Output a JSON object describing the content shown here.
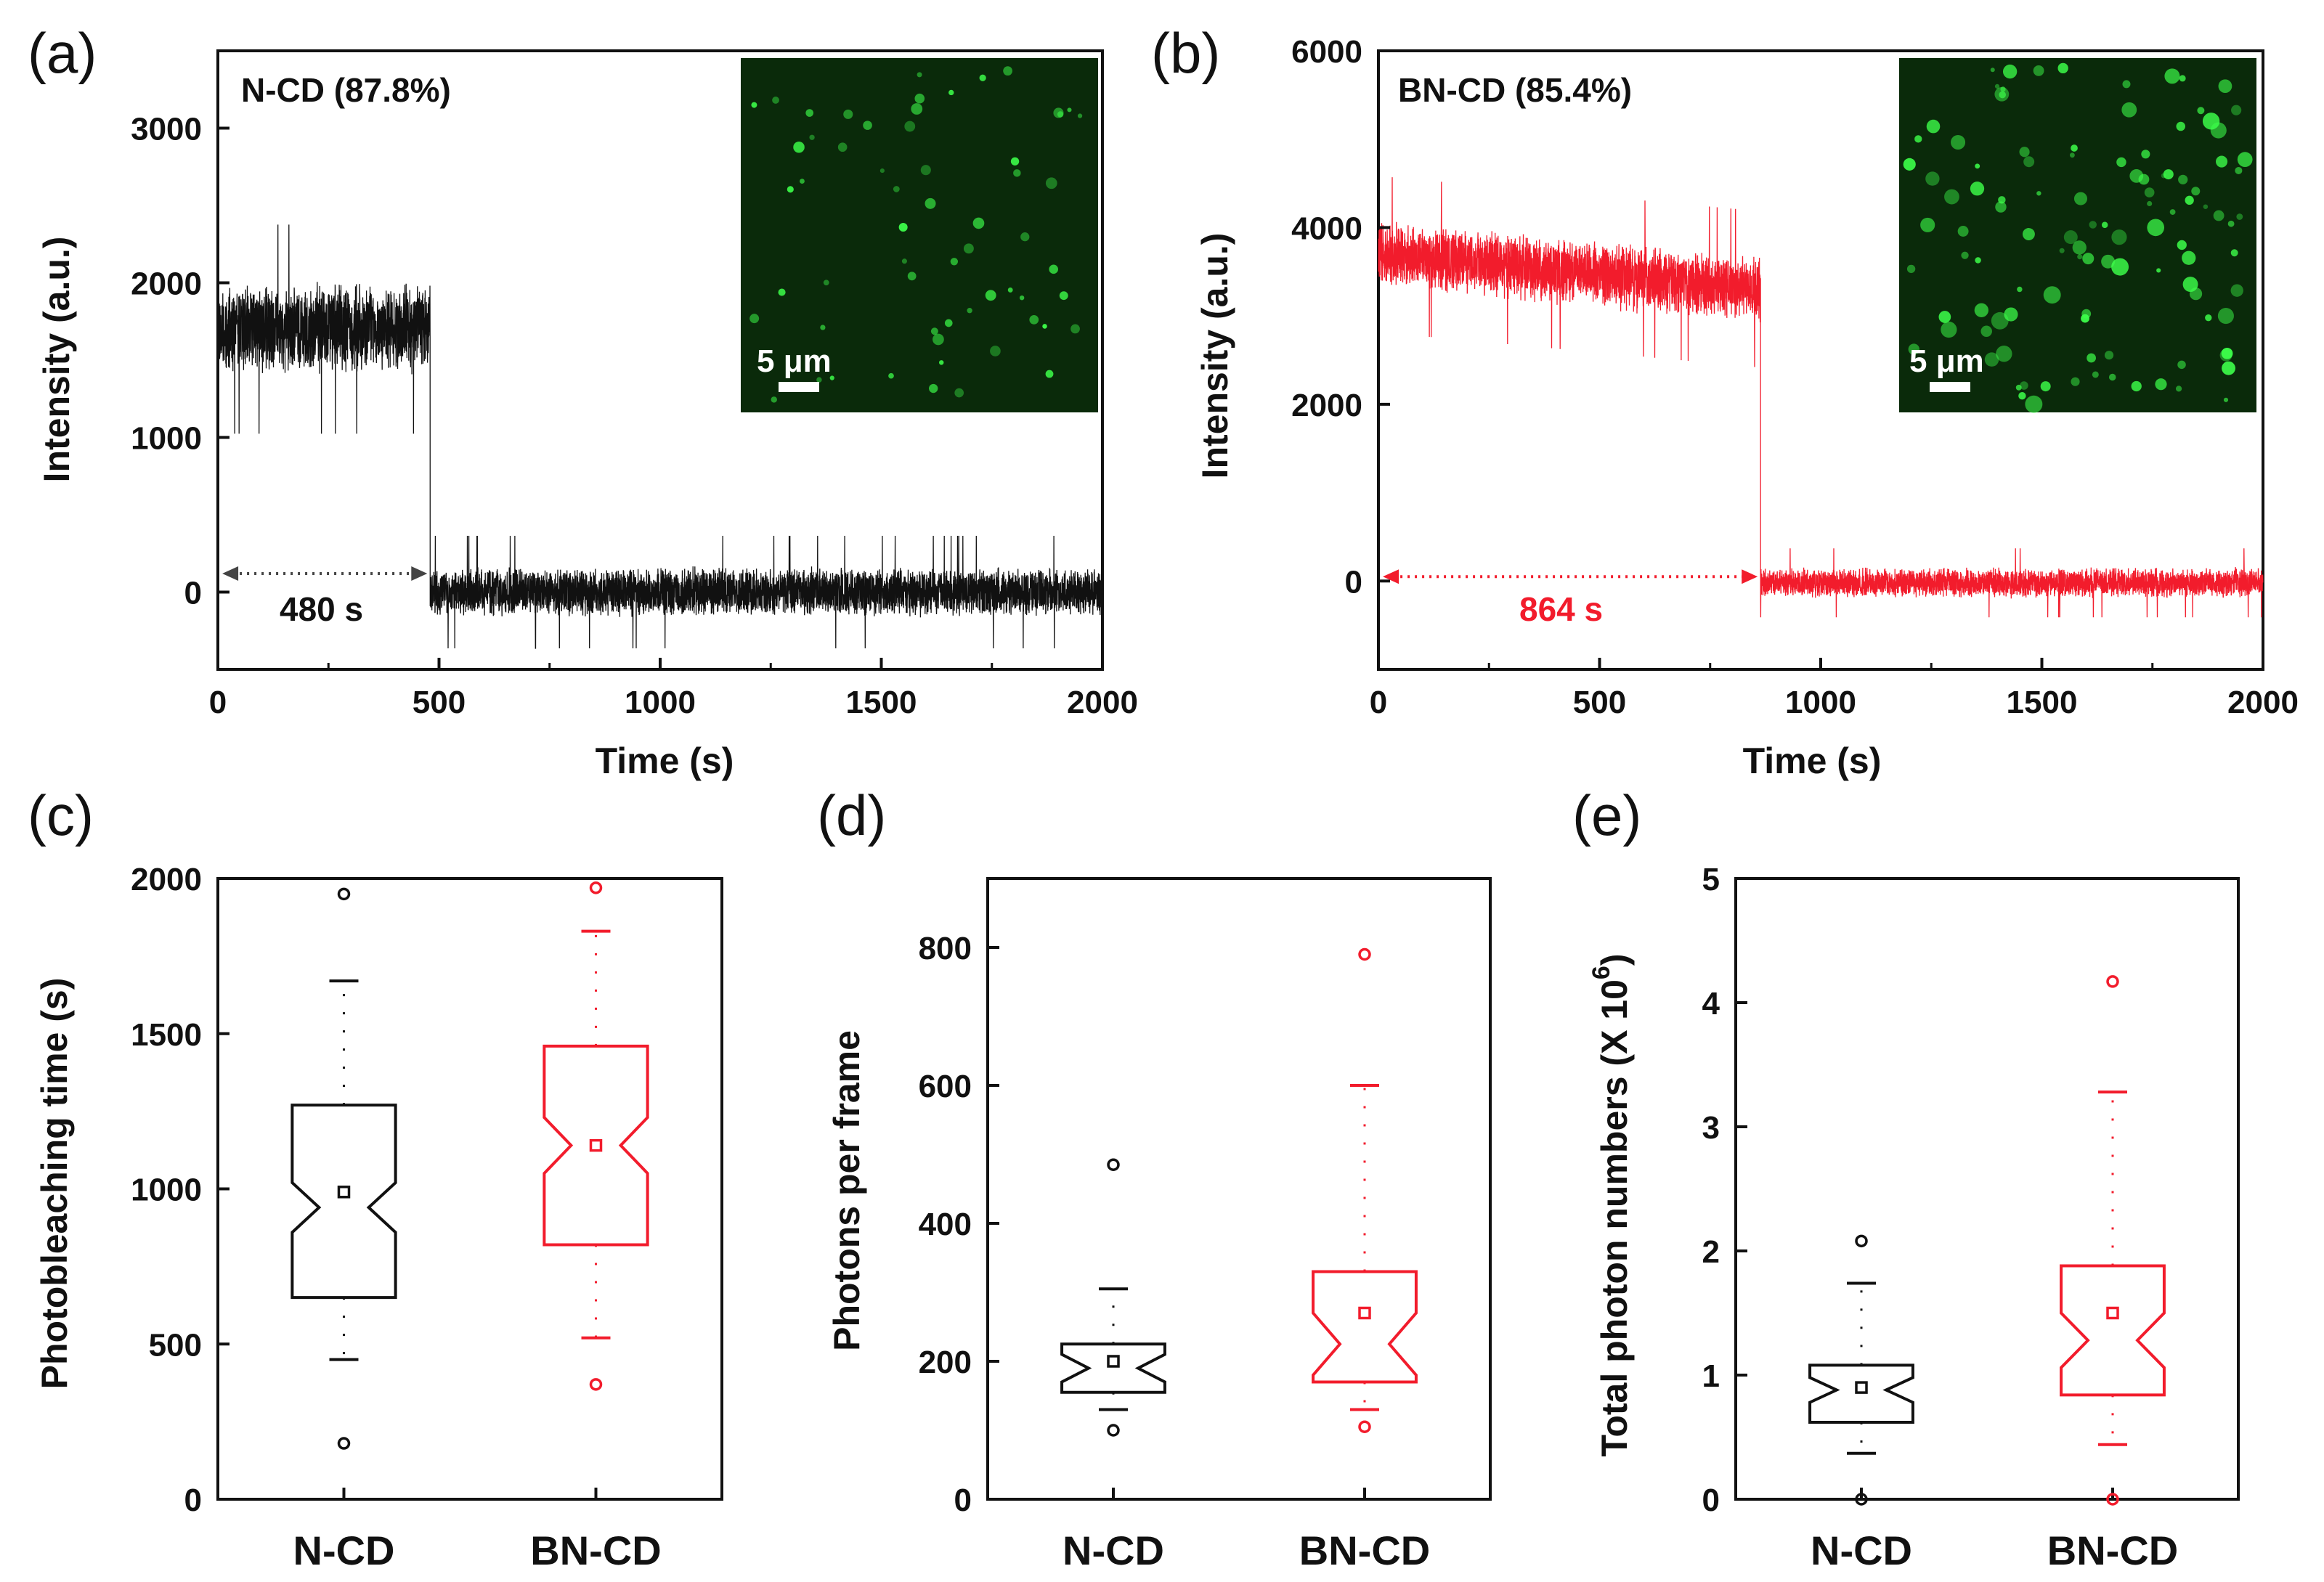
{
  "colors": {
    "black": "#111111",
    "red": "#f21c2c",
    "inset_bg": "#0a2a0a",
    "dot": "#3dff4a"
  },
  "chart_data": [
    {
      "panel": "(a)",
      "type": "line",
      "title": "N-CD (87.8%)",
      "xlabel": "Time (s)",
      "ylabel": "Intensity (a.u.)",
      "xlim": [
        0,
        2000
      ],
      "ylim": [
        -500,
        3500
      ],
      "xticks": [
        0,
        500,
        1000,
        1500,
        2000
      ],
      "yticks": [
        0,
        1000,
        2000,
        3000
      ],
      "color": "black",
      "segments": [
        {
          "x_start": 0,
          "x_end": 480,
          "mean": 1700,
          "noise": 260
        },
        {
          "x_start": 480,
          "x_end": 2000,
          "mean": 0,
          "noise": 140
        }
      ],
      "bleach_time": 480,
      "duration_label": "480 s",
      "inset": {
        "scale_label": "5 μm",
        "dots": 60
      }
    },
    {
      "panel": "(b)",
      "type": "line",
      "title": "BN-CD (85.4%)",
      "xlabel": "Time (s)",
      "ylabel": "Intensity (a.u.)",
      "xlim": [
        0,
        2000
      ],
      "ylim": [
        -1000,
        6000
      ],
      "xticks": [
        0,
        500,
        1000,
        1500,
        2000
      ],
      "yticks": [
        0,
        2000,
        4000,
        6000
      ],
      "color": "red",
      "segments": [
        {
          "x_start": 0,
          "x_end": 864,
          "mean_start": 3700,
          "mean_end": 3300,
          "noise": 340
        },
        {
          "x_start": 864,
          "x_end": 2000,
          "mean": -20,
          "noise": 150
        }
      ],
      "bleach_time": 864,
      "duration_label": "864 s",
      "inset": {
        "scale_label": "5 μm",
        "dots": 110
      }
    },
    {
      "panel": "(c)",
      "type": "box",
      "ylabel": "Photobleaching time (s)",
      "categories": [
        "N-CD",
        "BN-CD"
      ],
      "ylim": [
        0,
        2000
      ],
      "yticks": [
        0,
        500,
        1000,
        1500,
        2000
      ],
      "boxes": [
        {
          "name": "N-CD",
          "color": "black",
          "q1": 650,
          "median": 940,
          "q3": 1270,
          "notch": 80,
          "mean": 990,
          "whisker_low": 450,
          "whisker_high": 1670,
          "outliers": [
            180,
            1950
          ]
        },
        {
          "name": "BN-CD",
          "color": "red",
          "q1": 820,
          "median": 1140,
          "q3": 1460,
          "notch": 90,
          "mean": 1140,
          "whisker_low": 520,
          "whisker_high": 1830,
          "outliers": [
            370,
            1970
          ]
        }
      ]
    },
    {
      "panel": "(d)",
      "type": "box",
      "ylabel": "Photons per frame",
      "categories": [
        "N-CD",
        "BN-CD"
      ],
      "ylim": [
        0,
        900
      ],
      "yticks": [
        0,
        200,
        400,
        600,
        800
      ],
      "boxes": [
        {
          "name": "N-CD",
          "color": "black",
          "q1": 155,
          "median": 190,
          "q3": 225,
          "notch": 20,
          "mean": 200,
          "whisker_low": 130,
          "whisker_high": 305,
          "outliers": [
            100,
            485
          ]
        },
        {
          "name": "BN-CD",
          "color": "red",
          "q1": 170,
          "median": 225,
          "q3": 330,
          "notch": 45,
          "mean": 270,
          "whisker_low": 130,
          "whisker_high": 600,
          "outliers": [
            105,
            790
          ]
        }
      ]
    },
    {
      "panel": "(e)",
      "type": "box",
      "ylabel": "Total photon numbers (X 10",
      "ylabel_sup": "6",
      "ylabel_end": ")",
      "categories": [
        "N-CD",
        "BN-CD"
      ],
      "ylim": [
        0,
        5
      ],
      "yticks": [
        0,
        1,
        2,
        3,
        4,
        5
      ],
      "boxes": [
        {
          "name": "N-CD",
          "color": "black",
          "q1": 0.62,
          "median": 0.88,
          "q3": 1.08,
          "notch": 0.1,
          "mean": 0.9,
          "whisker_low": 0.37,
          "whisker_high": 1.74,
          "outliers": [
            0.0,
            2.08
          ]
        },
        {
          "name": "BN-CD",
          "color": "red",
          "q1": 0.84,
          "median": 1.28,
          "q3": 1.88,
          "notch": 0.22,
          "mean": 1.5,
          "whisker_low": 0.44,
          "whisker_high": 3.28,
          "outliers": [
            0.0,
            4.17
          ]
        }
      ]
    }
  ]
}
